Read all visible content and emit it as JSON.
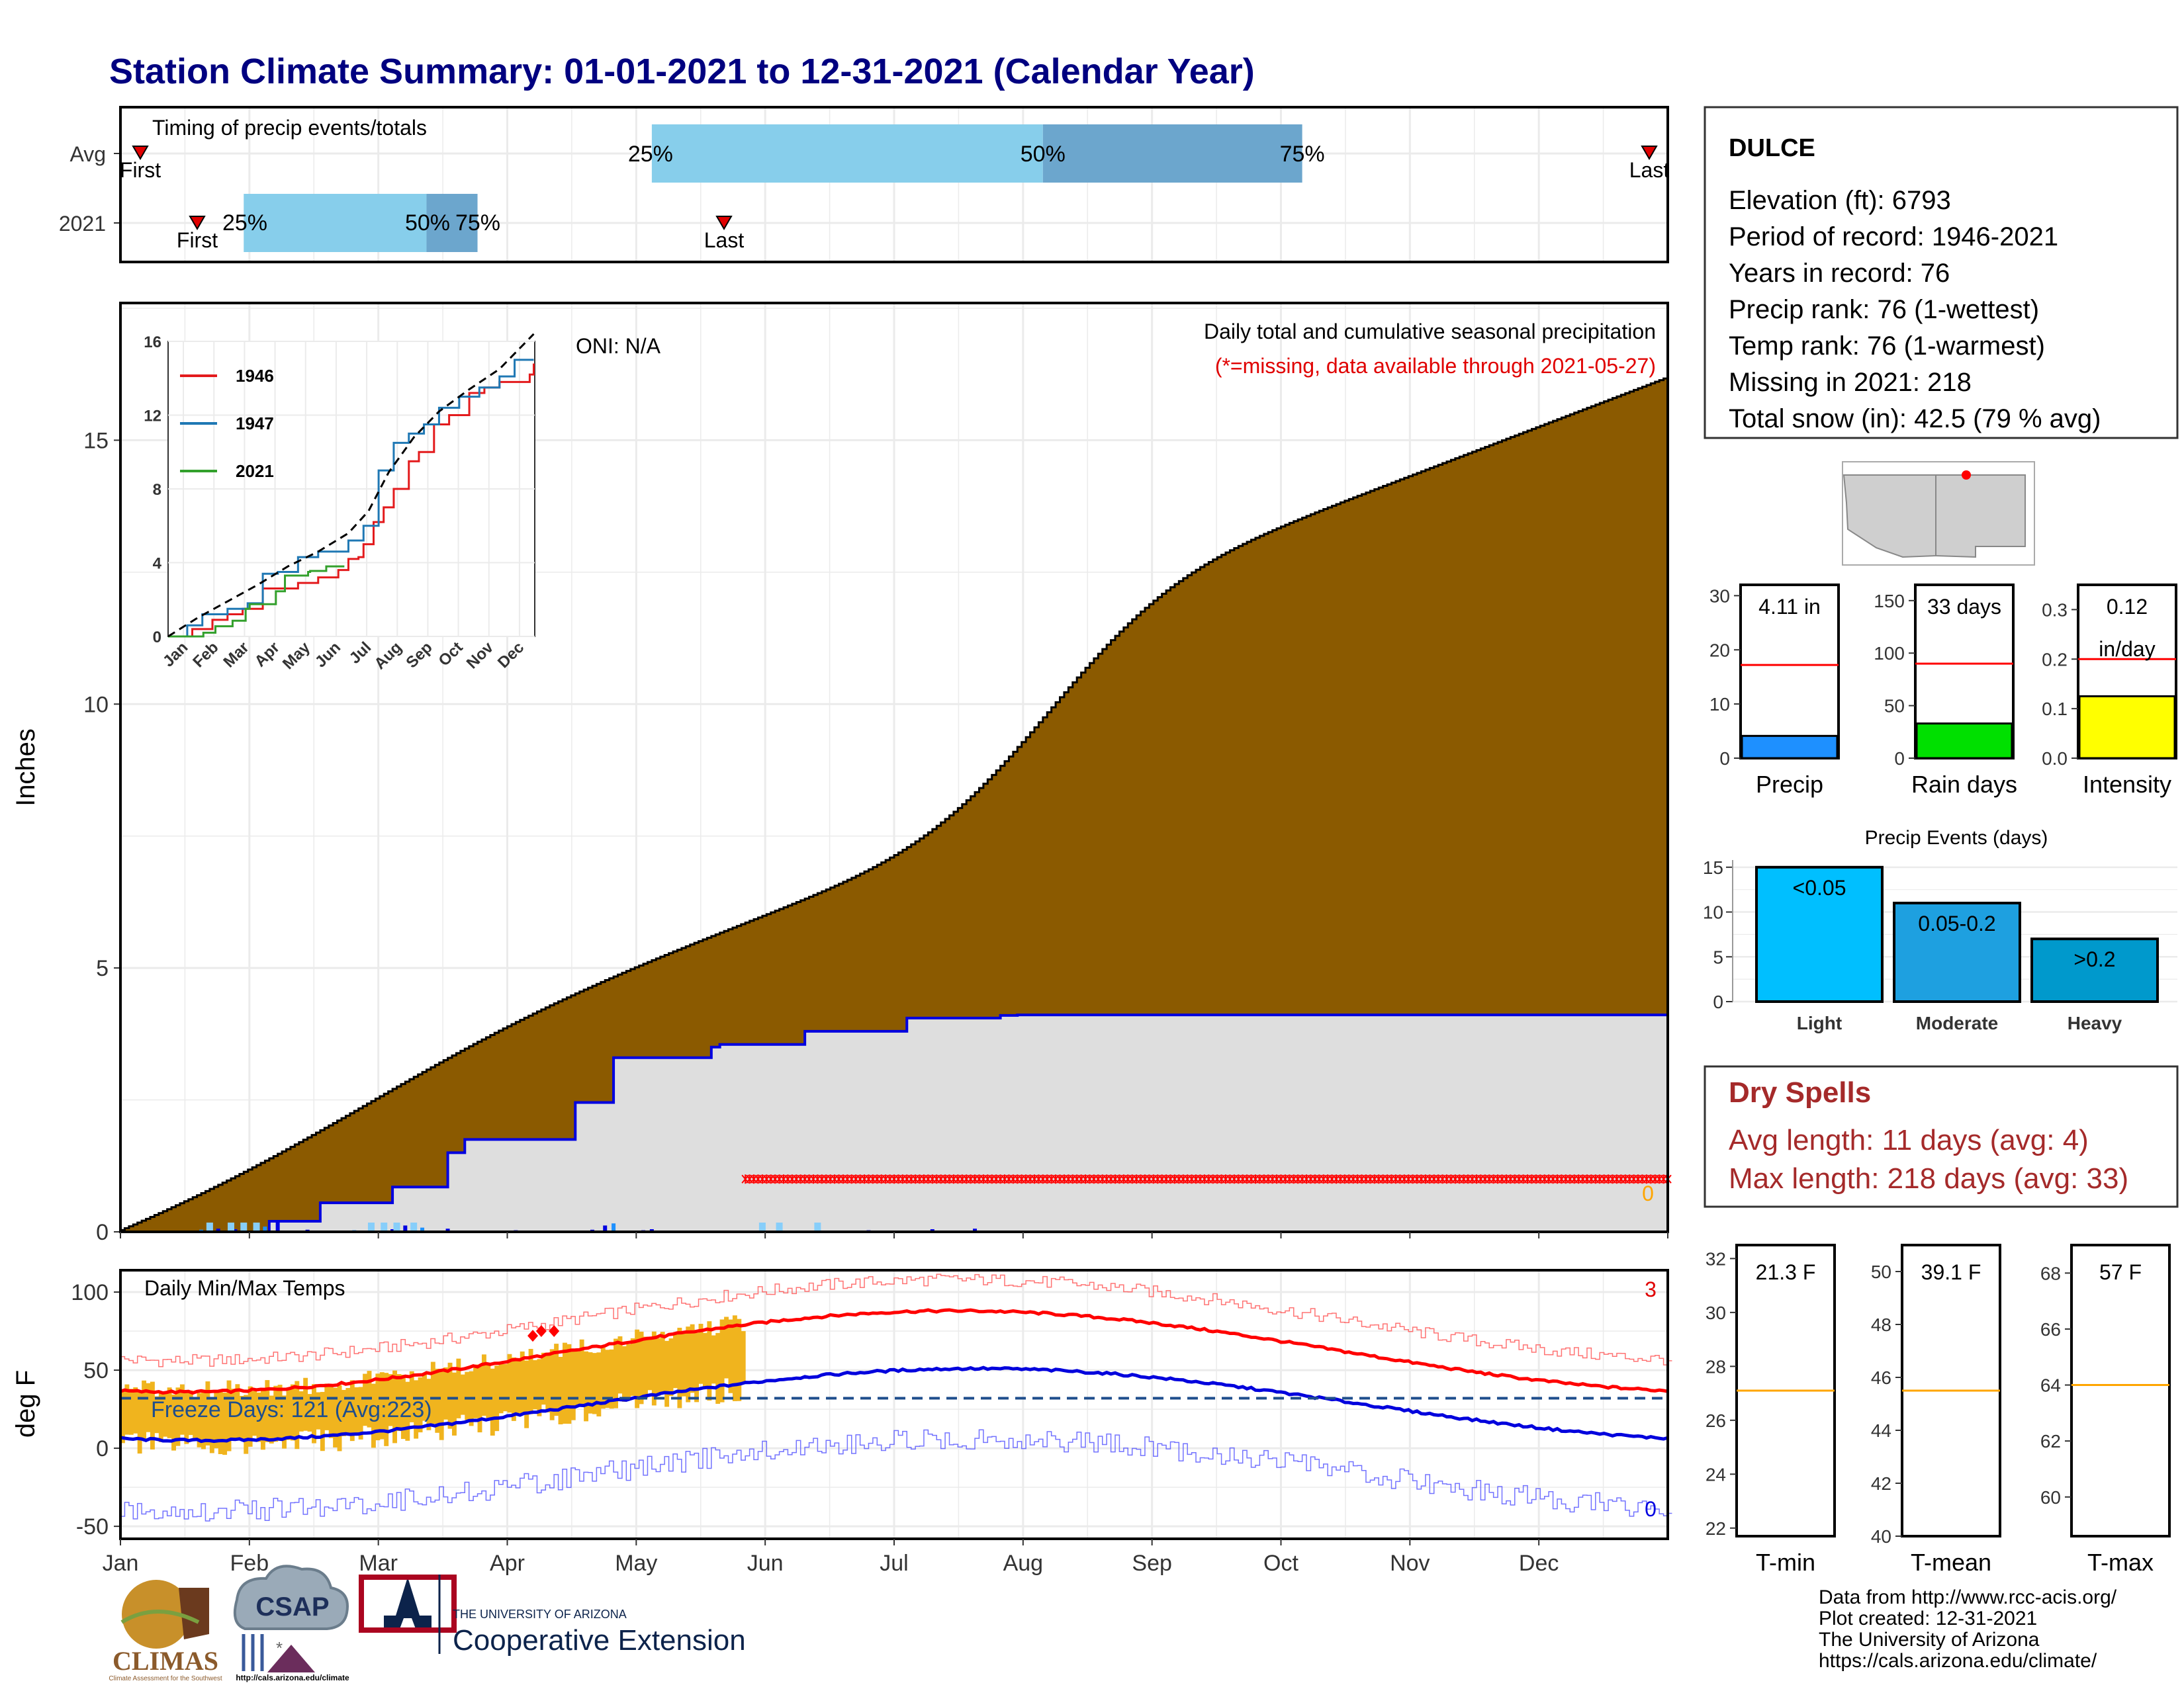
{
  "title": "Station Climate Summary: 01-01-2021 to 12-31-2021 (Calendar Year)",
  "timing": {
    "title": "Timing of precip events/totals",
    "row_labels": [
      "Avg",
      "2021"
    ],
    "avg": {
      "first": 1,
      "last": 365,
      "p25": 126,
      "p50": 218,
      "p75": 279
    },
    "current": {
      "first": 14,
      "last": 143,
      "p25": 30,
      "p50": 73,
      "p75": 85
    },
    "labels": {
      "first": "First",
      "last": "Last",
      "p25": "25%",
      "p50": "50%",
      "p75": "75%"
    }
  },
  "precip_panel": {
    "ylabel": "Inches",
    "annotation_oni": "ONI: N/A",
    "subtitle": "Daily total and cumulative seasonal precipitation",
    "missing_note": "(*=missing, data available through 2021-05-27)",
    "zero_label": "0",
    "yticks": [
      0,
      5,
      10,
      15
    ],
    "ylim": [
      0,
      17.6
    ],
    "months": [
      "Jan",
      "Feb",
      "Mar",
      "Apr",
      "May",
      "Jun",
      "Jul",
      "Aug",
      "Sep",
      "Oct",
      "Nov",
      "Dec"
    ]
  },
  "inset": {
    "yticks": [
      0,
      4,
      8,
      12,
      16
    ],
    "months": [
      "Jan",
      "Feb",
      "Mar",
      "Apr",
      "May",
      "Jun",
      "Jul",
      "Aug",
      "Sep",
      "Oct",
      "Nov",
      "Dec"
    ],
    "legend": [
      {
        "name": "1946",
        "color": "#e31a1c"
      },
      {
        "name": "1947",
        "color": "#1f78b4"
      },
      {
        "name": "2021",
        "color": "#33a02c"
      }
    ]
  },
  "temp_panel": {
    "ylabel": "deg F",
    "title": "Daily Min/Max Temps",
    "freeze_label": "Freeze Days: 121 (Avg:223)",
    "count_max": "3",
    "count_min": "0",
    "yticks": [
      -50,
      0,
      50,
      100
    ],
    "months": [
      "Jan",
      "Feb",
      "Mar",
      "Apr",
      "May",
      "Jun",
      "Jul",
      "Aug",
      "Sep",
      "Oct",
      "Nov",
      "Dec"
    ]
  },
  "station": {
    "name": "DULCE",
    "lines": [
      "Elevation (ft): 6793",
      "Period of record: 1946-2021",
      "Years in record: 76",
      "Precip rank: 76 (1-wettest)",
      "Temp rank: 76 (1-warmest)",
      "Missing in 2021: 218",
      "Total snow (in): 42.5 (79 % avg)"
    ]
  },
  "gauges": [
    {
      "label": "Precip",
      "value_text": "4.11 in",
      "value": 4.11,
      "avg": 17.2,
      "max": 32,
      "ticks": [
        0,
        10,
        20,
        30
      ],
      "color": "#1e90ff"
    },
    {
      "label": "Rain days",
      "value_text": "33 days",
      "value": 33,
      "avg": 90,
      "max": 165,
      "ticks": [
        0,
        50,
        100,
        150
      ],
      "color": "#00e000"
    },
    {
      "label": "Intensity",
      "value_text": "0.12",
      "value_text2": "in/day",
      "value": 0.125,
      "avg": 0.2,
      "max": 0.35,
      "ticks": [
        "0.0",
        "0.1",
        "0.2",
        "0.3"
      ],
      "color": "#ffff00"
    }
  ],
  "events": {
    "title": "Precip Events (days)",
    "categories": [
      "Light",
      "Moderate",
      "Heavy"
    ],
    "values": [
      15,
      11,
      7
    ],
    "bar_labels": [
      "<0.05",
      "0.05-0.2",
      ">0.2"
    ],
    "colors": [
      "#00bfff",
      "#1ea0e0",
      "#0099cc"
    ],
    "yticks": [
      0,
      5,
      10,
      15
    ]
  },
  "dry_spells": {
    "title": "Dry Spells",
    "avg_line": "Avg length: 11 days (avg: 4)",
    "max_line": "Max length: 218 days (avg: 33)"
  },
  "temp_gauges": [
    {
      "label": "T-min",
      "value_text": "21.3 F",
      "min": 21.7,
      "max": 32.5,
      "avg": 27.1,
      "ticks": [
        22,
        24,
        26,
        28,
        30,
        32
      ]
    },
    {
      "label": "T-mean",
      "value_text": "39.1 F",
      "min": 40,
      "max": 51,
      "avg": 45.5,
      "ticks": [
        40,
        42,
        44,
        46,
        48,
        50
      ]
    },
    {
      "label": "T-max",
      "value_text": "57 F",
      "min": 58.6,
      "max": 69,
      "avg": 64,
      "ticks": [
        60,
        62,
        64,
        66,
        68
      ]
    }
  ],
  "footer": {
    "lines": [
      "Data from http://www.rcc-acis.org/",
      "Plot created: 12-31-2021",
      "The University of Arizona",
      "https://cals.arizona.edu/climate/"
    ],
    "logos": {
      "climas": "CLIMAS",
      "climas_sub": "Climate Assessment for the Southwest",
      "csap": "CSAP",
      "csap_url": "http://cals.arizona.edu/climate",
      "ua_small": "THE UNIVERSITY OF ARIZONA",
      "coop": "Cooperative Extension"
    }
  },
  "colors": {
    "title": "#000080",
    "cum_fill": "#8b5a00",
    "obs_fill": "#dedede",
    "obs_line": "#0000e0",
    "missing": "#ff0000",
    "bar_temp": "#f0b41e",
    "tmax_avg": "#ff0000",
    "tmin_avg": "#0000dd"
  }
}
